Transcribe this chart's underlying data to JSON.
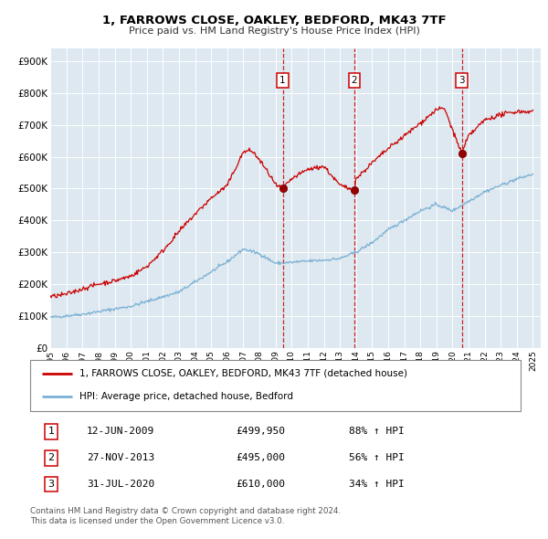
{
  "title": "1, FARROWS CLOSE, OAKLEY, BEDFORD, MK43 7TF",
  "subtitle": "Price paid vs. HM Land Registry's House Price Index (HPI)",
  "xlim": [
    1995.0,
    2025.5
  ],
  "ylim": [
    0,
    950000
  ],
  "yticks": [
    0,
    100000,
    200000,
    300000,
    400000,
    500000,
    600000,
    700000,
    800000,
    900000
  ],
  "ytick_labels": [
    "£0",
    "£100K",
    "£200K",
    "£300K",
    "£400K",
    "£500K",
    "£600K",
    "£700K",
    "£800K",
    "£900K"
  ],
  "xtick_labels": [
    "1995",
    "1996",
    "1997",
    "1998",
    "1999",
    "2000",
    "2001",
    "2002",
    "2003",
    "2004",
    "2005",
    "2006",
    "2007",
    "2008",
    "2009",
    "2010",
    "2011",
    "2012",
    "2013",
    "2014",
    "2015",
    "2016",
    "2017",
    "2018",
    "2019",
    "2020",
    "2021",
    "2022",
    "2023",
    "2024",
    "2025"
  ],
  "legend_line1": "1, FARROWS CLOSE, OAKLEY, BEDFORD, MK43 7TF (detached house)",
  "legend_line2": "HPI: Average price, detached house, Bedford",
  "transactions": [
    {
      "num": 1,
      "date": "12-JUN-2009",
      "price": "£499,950",
      "pct": "88% ↑ HPI",
      "year": 2009.45,
      "value": 499950
    },
    {
      "num": 2,
      "date": "27-NOV-2013",
      "price": "£495,000",
      "pct": "56% ↑ HPI",
      "year": 2013.9,
      "value": 495000
    },
    {
      "num": 3,
      "date": "31-JUL-2020",
      "price": "£610,000",
      "pct": "34% ↑ HPI",
      "year": 2020.58,
      "value": 610000
    }
  ],
  "footer1": "Contains HM Land Registry data © Crown copyright and database right 2024.",
  "footer2": "This data is licensed under the Open Government Licence v3.0.",
  "plot_bg": "#dde8f0",
  "red_color": "#cc0000",
  "blue_color": "#7ab0d4"
}
